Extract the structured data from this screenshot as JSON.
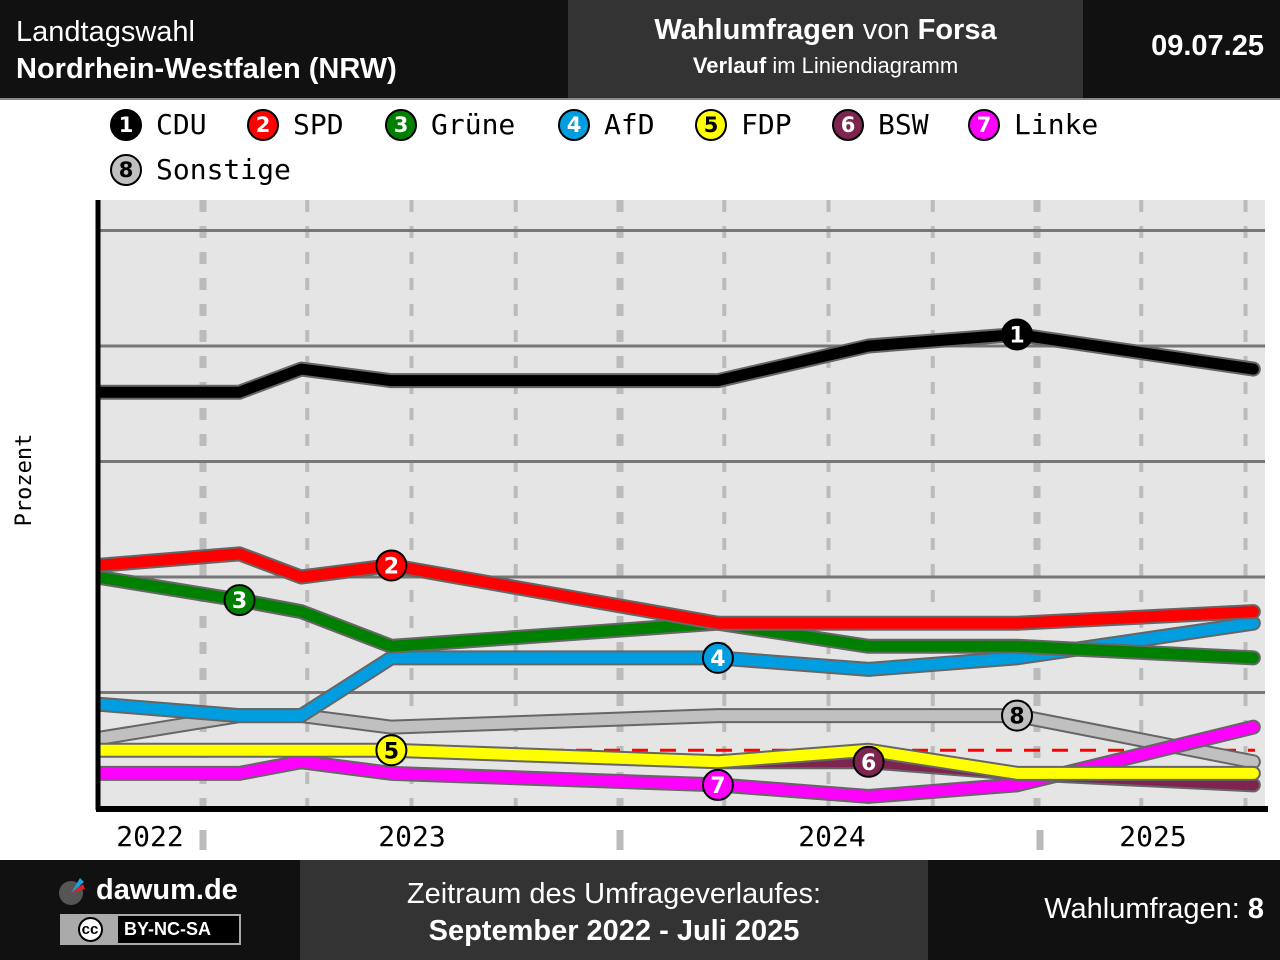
{
  "header": {
    "line1": "Landtagswahl",
    "line2": "Nordrhein-Westfalen (NRW)",
    "title_bold1": "Wahlumfragen",
    "title_mid": " von ",
    "title_bold2": "Forsa",
    "sub_bold": "Verlauf",
    "sub_rest": " im Liniendiagramm",
    "date": "09.07.25"
  },
  "footer": {
    "brand": "dawum.de",
    "license": "BY-NC-SA",
    "license_cc": "cc",
    "period_label": "Zeitraum des Umfrageverlaufes:",
    "period": "September 2022 - Juli 2025",
    "count_label": "Wahlumfragen: ",
    "count": "8"
  },
  "chart_data": {
    "type": "line",
    "title": "Wahlumfragen von Forsa",
    "xlabel": "",
    "ylabel": "Prozent",
    "ylim": [
      0,
      52
    ],
    "yticks": [
      "10",
      "20",
      "30",
      "40",
      "50"
    ],
    "xtick_labels": [
      "2022",
      "2023",
      "2024",
      "2025"
    ],
    "x": [
      "2022-09-30",
      "2023-02-02",
      "2023-03-28",
      "2023-06-15",
      "2024-03-27",
      "2024-08-06",
      "2024-12-14",
      "2025-07-09"
    ],
    "threshold": 5,
    "series": [
      {
        "num": "1",
        "name": "CDU",
        "color": "#000000",
        "text": "#ffffff",
        "values": [
          36,
          36,
          38,
          37,
          37,
          40,
          41,
          38
        ],
        "label_at": 6
      },
      {
        "num": "2",
        "name": "SPD",
        "color": "#ff0000",
        "text": "#ffffff",
        "values": [
          21,
          22,
          20,
          21,
          16,
          16,
          16,
          17
        ],
        "label_at": 3
      },
      {
        "num": "3",
        "name": "Grüne",
        "color": "#008000",
        "text": "#ffffff",
        "values": [
          20,
          18,
          17,
          14,
          16,
          14,
          14,
          13
        ],
        "label_at": 1
      },
      {
        "num": "4",
        "name": "AfD",
        "color": "#009ee0",
        "text": "#ffffff",
        "values": [
          9,
          8,
          8,
          13,
          13,
          12,
          13,
          16
        ],
        "label_at": 4
      },
      {
        "num": "5",
        "name": "FDP",
        "color": "#ffff00",
        "text": "#000000",
        "values": [
          5,
          5,
          5,
          5,
          4,
          5,
          3,
          3
        ],
        "label_at": 3
      },
      {
        "num": "6",
        "name": "BSW",
        "color": "#7d254f",
        "text": "#ffffff",
        "values": [
          null,
          null,
          null,
          null,
          4,
          4,
          3,
          2
        ],
        "label_at": 5
      },
      {
        "num": "7",
        "name": "Linke",
        "color": "#ff00ff",
        "text": "#ffffff",
        "values": [
          3,
          3,
          4,
          3,
          2,
          1,
          2,
          7
        ],
        "label_at": 4
      },
      {
        "num": "8",
        "name": "Sonstige",
        "color": "#c0c0c0",
        "text": "#000000",
        "values": [
          6,
          8,
          8,
          7,
          8,
          8,
          8,
          4
        ],
        "label_at": 6
      }
    ]
  }
}
